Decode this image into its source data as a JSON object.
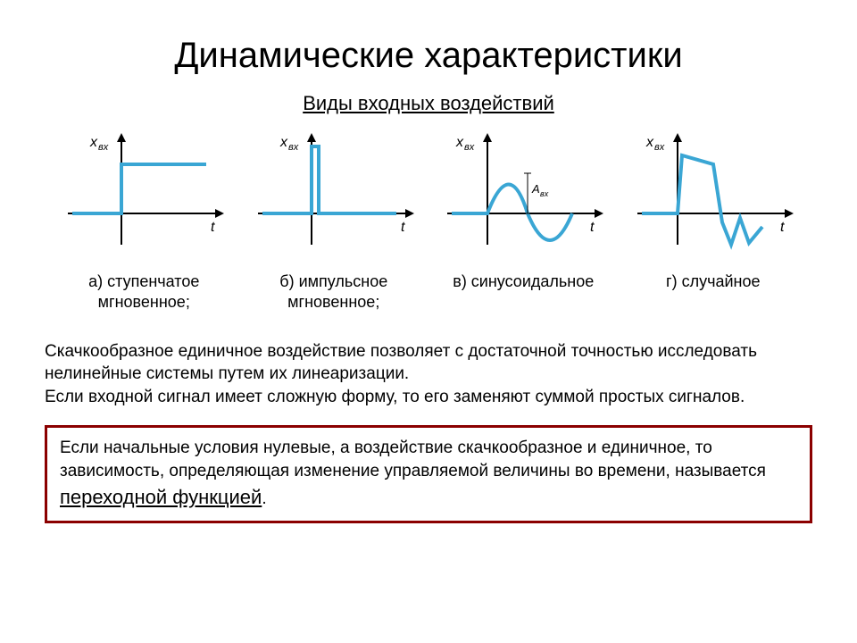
{
  "title": "Динамические характеристики",
  "subtitle": "Виды входных воздействий",
  "charts": {
    "common": {
      "axis_color": "#000000",
      "line_color": "#3aa6d4",
      "line_width": 4,
      "axis_width": 2,
      "bg": "#ffffff",
      "x_label": "t",
      "y_label_a": "x_вх",
      "y_label_b": "x_вх",
      "y_label_c": "x_вх",
      "y_label_d": "x_вх",
      "amp_label": "A_вх"
    },
    "items": [
      {
        "type": "step",
        "label_a": "а) ступенчатое",
        "label_b": "мгновенное;"
      },
      {
        "type": "impulse",
        "label_a": "б) импульсное",
        "label_b": "мгновенное;"
      },
      {
        "type": "sine",
        "label_a": "в) синусоидальное",
        "label_b": ""
      },
      {
        "type": "random",
        "label_a": "г) случайное",
        "label_b": ""
      }
    ]
  },
  "paragraph": "Скачкообразное единичное воздействие позволяет с достаточной точностью исследовать нелинейные системы путем их линеаризации.\nЕсли входной сигнал имеет сложную форму, то его заменяют суммой простых сигналов.",
  "definition": {
    "text_before": "Если начальные условия нулевые, а воздействие скачкообразное и единичное, то зависимость, определяющая изменение управляемой величины во времени, называется ",
    "term": "переходной функцией",
    "text_after": "."
  },
  "colors": {
    "box_border": "#8b0000",
    "text": "#000000",
    "bg": "#ffffff"
  }
}
